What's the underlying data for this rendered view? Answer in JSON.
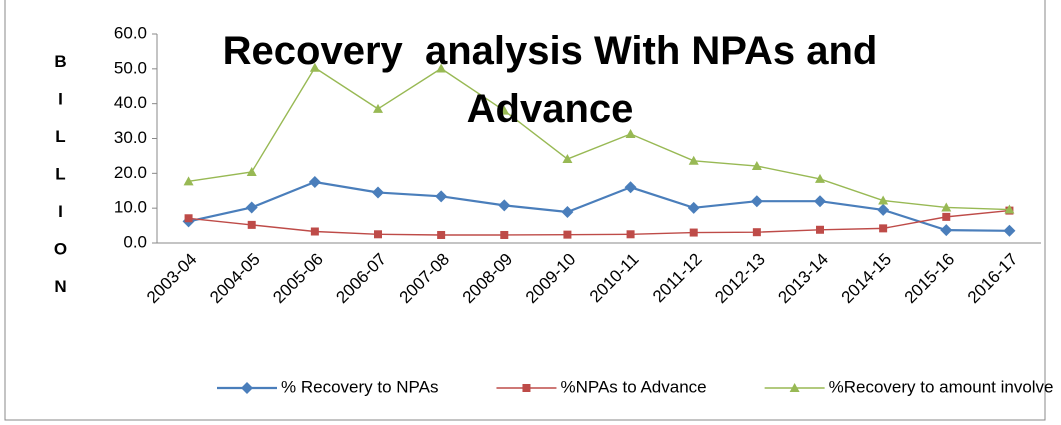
{
  "chart_data": {
    "type": "line",
    "title": "Recovery  analysis With NPAs and Advance",
    "y_label": "BILLION",
    "categories": [
      "2003-04",
      "2004-05",
      "2005-06",
      "2006-07",
      "2007-08",
      "2008-09",
      "2009-10",
      "2010-11",
      "2011-12",
      "2012-13",
      "2013-14",
      "2014-15",
      "2015-16",
      "2016-17"
    ],
    "series": [
      {
        "name": "% Recovery to NPAs",
        "color": "#4a7ebb",
        "marker": "diamond",
        "values": [
          6.2,
          10.2,
          17.5,
          14.5,
          13.4,
          10.8,
          8.9,
          16.0,
          10.1,
          12.0,
          12.0,
          9.5,
          3.7,
          3.5
        ]
      },
      {
        "name": "%NPAs to Advance",
        "color": "#be4b48",
        "marker": "square",
        "values": [
          7.1,
          5.2,
          3.3,
          2.5,
          2.3,
          2.3,
          2.4,
          2.5,
          3.0,
          3.1,
          3.8,
          4.2,
          7.5,
          9.3
        ]
      },
      {
        "name": "%Recovery to amount involve",
        "color": "#98b954",
        "marker": "triangle",
        "values": [
          17.7,
          20.4,
          50.3,
          38.5,
          50.1,
          38.0,
          24.1,
          31.3,
          23.6,
          22.1,
          18.4,
          12.2,
          10.2,
          9.6
        ]
      }
    ],
    "ylim": [
      0,
      60
    ],
    "yticks": [
      {
        "value": 0,
        "label": "0.0"
      },
      {
        "value": 10,
        "label": "10.0"
      },
      {
        "value": 20,
        "label": "20.0"
      },
      {
        "value": 30,
        "label": "30.0"
      },
      {
        "value": 40,
        "label": "40.0"
      },
      {
        "value": 50,
        "label": "50.0"
      },
      {
        "value": 60,
        "label": "60.0"
      }
    ],
    "legend": "bottom"
  }
}
